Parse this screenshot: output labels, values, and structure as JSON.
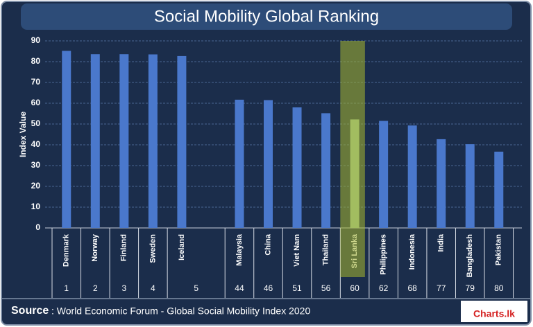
{
  "chart_data": {
    "type": "bar",
    "title": "Social Mobility Global Ranking",
    "y_label": "Index Value",
    "categories": [
      "Denmark",
      "Norway",
      "Finland",
      "Sweden",
      "Iceland",
      null,
      "Malaysia",
      "China",
      "Viet Nam",
      "Thailand",
      "Sri Lanka",
      "Philippines",
      "Indonesia",
      "India",
      "Bangladesh",
      "Pakistan"
    ],
    "values": [
      85.2,
      83.6,
      83.6,
      83.5,
      82.7,
      null,
      61.7,
      61.5,
      58.0,
      55.2,
      52.2,
      51.5,
      49.3,
      42.7,
      40.3,
      36.7
    ],
    "ranks": [
      1,
      2,
      3,
      4,
      5,
      null,
      44,
      46,
      51,
      56,
      60,
      62,
      68,
      77,
      79,
      80
    ],
    "color": "#4a78cc",
    "highlight": "Sri Lanka",
    "highlight_color": "#9cc49c",
    "ylim": [
      0,
      90
    ],
    "yticks": [
      0,
      10,
      20,
      30,
      40,
      50,
      60,
      70,
      80,
      90
    ],
    "grid": true,
    "source_label": "Source",
    "source_text": ": World Economic Forum - Global Social Mobility Index 2020",
    "logo": "Charts.lk"
  }
}
